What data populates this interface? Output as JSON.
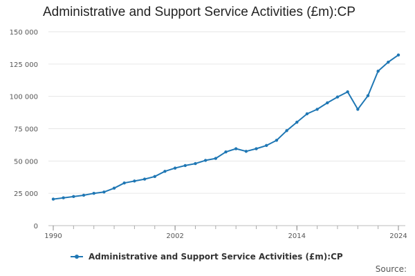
{
  "chart_data": {
    "type": "line",
    "title": "Administrative and Support Service Activities (£m):CP",
    "xlabel": "",
    "ylabel": "",
    "ylim": [
      0,
      150000
    ],
    "xlim": [
      1990,
      2024
    ],
    "yticks": [
      0,
      25000,
      50000,
      75000,
      100000,
      125000,
      150000
    ],
    "ytick_labels": [
      "0",
      "25 000",
      "50 000",
      "75 000",
      "100 000",
      "125 000",
      "150 000"
    ],
    "xticks": [
      1990,
      2002,
      2014,
      2024
    ],
    "xtick_labels": [
      "1990",
      "2002",
      "2014",
      "2024"
    ],
    "grid": true,
    "legend_position": "bottom-left",
    "series": [
      {
        "name": "Administrative and Support Service Activities (£m):CP",
        "color": "#1f77b4",
        "x": [
          1990,
          1991,
          1992,
          1993,
          1994,
          1995,
          1996,
          1997,
          1998,
          1999,
          2000,
          2001,
          2002,
          2003,
          2004,
          2005,
          2006,
          2007,
          2008,
          2009,
          2010,
          2011,
          2012,
          2013,
          2014,
          2015,
          2016,
          2017,
          2018,
          2019,
          2020,
          2021,
          2022,
          2023,
          2024
        ],
        "values": [
          20500,
          21500,
          22500,
          23500,
          25000,
          26000,
          29000,
          33000,
          34500,
          36000,
          38000,
          42000,
          44500,
          46500,
          48000,
          50500,
          52000,
          57000,
          59500,
          57500,
          59500,
          62000,
          66000,
          73500,
          80000,
          86500,
          90000,
          95000,
          99500,
          103500,
          90000,
          100500,
          119500,
          126500,
          132000
        ]
      }
    ]
  },
  "legend": {
    "label": "Administrative and Support Service Activities (£m):CP"
  },
  "footer": {
    "source": "Source:"
  }
}
